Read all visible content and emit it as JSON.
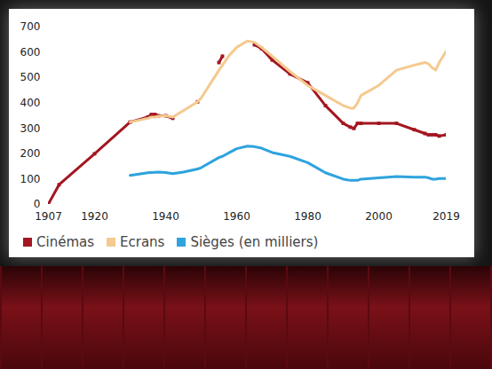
{
  "chart_data": {
    "type": "line",
    "x": [
      1907,
      1910,
      1920,
      1930,
      1935,
      1936,
      1937,
      1938,
      1940,
      1942,
      1945,
      1949,
      1950,
      1955,
      1956,
      1958,
      1960,
      1963,
      1965,
      1967,
      1970,
      1975,
      1980,
      1985,
      1990,
      1992,
      1993,
      1994,
      1995,
      2000,
      2005,
      2010,
      2013,
      2014,
      2015,
      2016,
      2017,
      2019
    ],
    "series": [
      {
        "name": "Cinémas",
        "color": "#a31621",
        "marker": "square",
        "values": [
          2,
          78,
          200,
          325,
          345,
          355,
          355,
          350,
          350,
          340,
          null,
          405,
          null,
          560,
          585,
          null,
          null,
          null,
          630,
          615,
          570,
          515,
          480,
          390,
          320,
          305,
          300,
          320,
          320,
          320,
          320,
          295,
          280,
          275,
          275,
          275,
          270,
          275
        ]
      },
      {
        "name": "Ecrans",
        "color": "#f5c98f",
        "values": [
          null,
          null,
          null,
          325,
          340,
          345,
          345,
          348,
          350,
          345,
          370,
          405,
          420,
          530,
          550,
          590,
          620,
          645,
          640,
          620,
          585,
          525,
          470,
          430,
          390,
          380,
          380,
          400,
          430,
          470,
          530,
          550,
          560,
          555,
          540,
          530,
          560,
          605
        ]
      },
      {
        "name": "Sièges (en milliers)",
        "color": "#2ea3de",
        "values": [
          null,
          null,
          null,
          115,
          125,
          126,
          127,
          128,
          126,
          122,
          128,
          140,
          145,
          185,
          190,
          205,
          220,
          230,
          228,
          222,
          205,
          190,
          165,
          125,
          100,
          95,
          95,
          95,
          100,
          105,
          110,
          108,
          108,
          105,
          100,
          100,
          102,
          102
        ]
      }
    ],
    "xlim": [
      1907,
      2019
    ],
    "xticks": [
      1907,
      1920,
      1940,
      1960,
      1980,
      2000,
      2019
    ],
    "ylim": [
      0,
      700
    ],
    "yticks": [
      0,
      100,
      200,
      300,
      400,
      500,
      600,
      700
    ],
    "grid": false,
    "legend": "bottom"
  }
}
